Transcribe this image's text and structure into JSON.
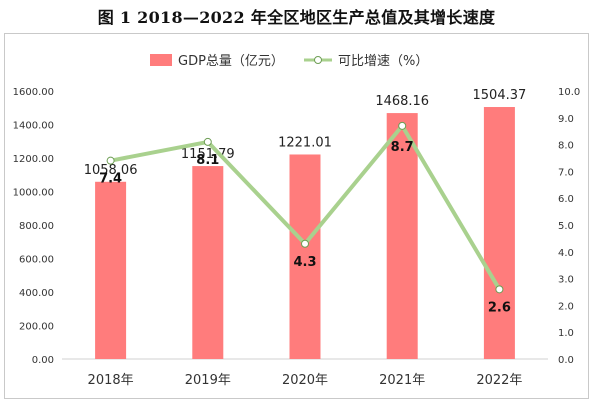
{
  "title": "图 1    2018—2022 年全区地区生产总值及其增长速度",
  "chart_data": {
    "type": "bar",
    "categories": [
      "2018年",
      "2019年",
      "2020年",
      "2021年",
      "2022年"
    ],
    "series": [
      {
        "name": "GDP总量（亿元）",
        "type": "bar",
        "axis": "left",
        "values": [
          1058.06,
          1151.79,
          1221.01,
          1468.16,
          1504.37
        ],
        "labels": [
          "1058.06",
          "1151.79",
          "1221.01",
          "1468.16",
          "1504.37"
        ],
        "color": "#ff7c7c"
      },
      {
        "name": "可比增速（%）",
        "type": "line",
        "axis": "right",
        "values": [
          7.4,
          8.1,
          4.3,
          8.7,
          2.6
        ],
        "labels": [
          "7.4",
          "8.1",
          "4.3",
          "8.7",
          "2.6"
        ],
        "color": "#a9d18e"
      }
    ],
    "y_left": {
      "range": [
        0,
        1600
      ],
      "ticks": [
        "0.00",
        "200.00",
        "400.00",
        "600.00",
        "800.00",
        "1000.00",
        "1200.00",
        "1400.00",
        "1600.00"
      ]
    },
    "y_right": {
      "range": [
        0,
        10
      ],
      "ticks": [
        "0.0",
        "1.0",
        "2.0",
        "3.0",
        "4.0",
        "5.0",
        "6.0",
        "7.0",
        "8.0",
        "9.0",
        "10.0"
      ]
    },
    "legend": "top-center",
    "grid": false
  }
}
